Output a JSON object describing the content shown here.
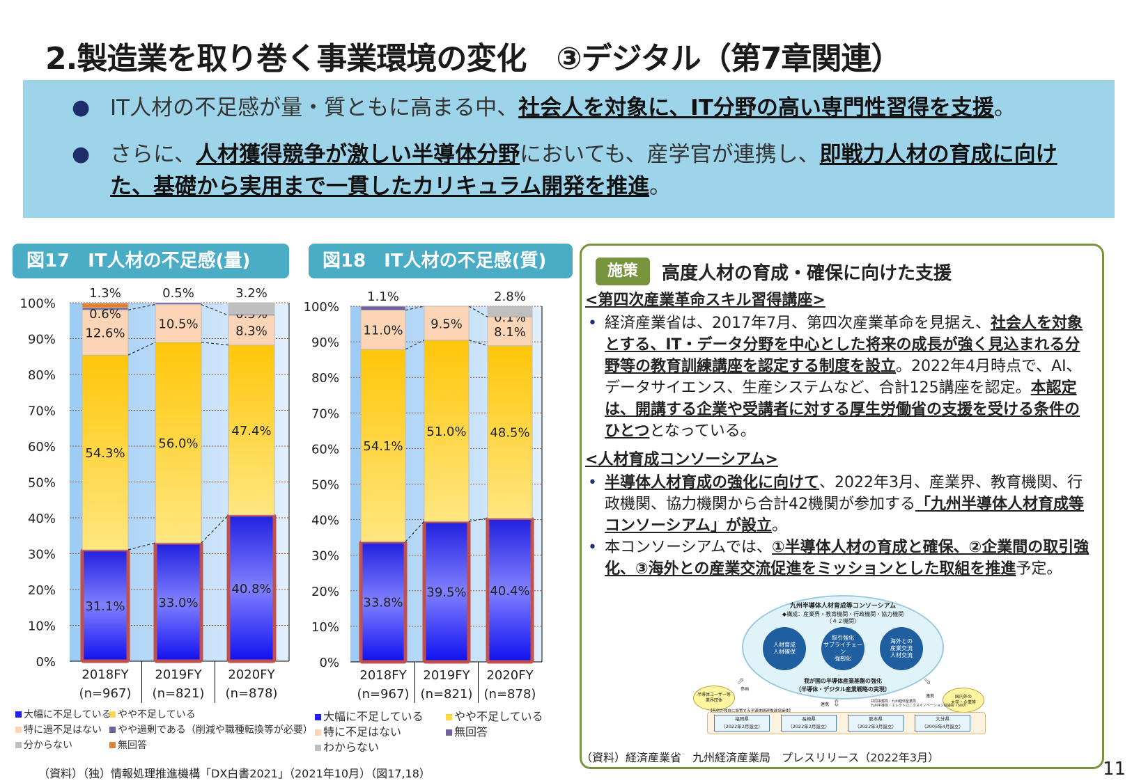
{
  "title": "2.製造業を取り巻く事業環境の変化　③デジタル（第7章関連）",
  "banner": {
    "bullet1": {
      "plain1": "IT人材の不足感が量・質ともに高まる中、",
      "bold1": "社会人を対象に、IT分野の高い専門性習得を支援",
      "plain2": "。"
    },
    "bullet2": {
      "plain1": "さらに、",
      "bold1": "人材獲得競争が激しい半導体分野",
      "plain2": "においても、産学官が連携し、",
      "bold2": "即戦力人材の育成に向けた、基礎から実用まで一貫したカリキュラム開発を推進",
      "plain3": "。"
    }
  },
  "fig17": {
    "header": "図17　IT人材の不足感(量)",
    "legend": [
      "大幅に不足している",
      "やや不足している",
      "特に過不足はない",
      "やや過剰である（削減や職種転換等が必要）",
      "分からない",
      "無回答"
    ]
  },
  "fig18": {
    "header": "図18　IT人材の不足感(質)",
    "legend": [
      "大幅に不足している",
      "やや不足している",
      "特に不足はない",
      "無回答",
      "わからない"
    ]
  },
  "chart_data": [
    {
      "type": "bar",
      "stacked": true,
      "title": "図17　IT人材の不足感(量)",
      "categories": [
        "2018FY",
        "2019FY",
        "2020FY"
      ],
      "category_n": [
        "(n=967)",
        "(n=821)",
        "(n=878)"
      ],
      "ylim": [
        0,
        100
      ],
      "yticks": [
        "0%",
        "10%",
        "20%",
        "30%",
        "40%",
        "50%",
        "60%",
        "70%",
        "80%",
        "90%",
        "100%"
      ],
      "grid": true,
      "series": [
        {
          "name": "大幅に不足している",
          "color": "#2020f0",
          "values": [
            31.1,
            33.0,
            40.8
          ]
        },
        {
          "name": "やや不足している",
          "color": "#ffc60a",
          "values": [
            54.3,
            56.0,
            47.4
          ]
        },
        {
          "name": "特に過不足はない",
          "color": "#fbd5b5",
          "values": [
            12.6,
            10.5,
            8.3
          ]
        },
        {
          "name": "やや過剰である（削減や職種転換等が必要）",
          "color": "#7060a0",
          "values": [
            0.6,
            0.5,
            0.3
          ]
        },
        {
          "name": "分からない",
          "color": "#bfbfbf",
          "values": [
            0,
            0,
            3.2
          ]
        },
        {
          "name": "無回答",
          "color": "#e08030",
          "values": [
            1.3,
            0,
            0
          ]
        }
      ]
    },
    {
      "type": "bar",
      "stacked": true,
      "title": "図18　IT人材の不足感(質)",
      "categories": [
        "2018FY",
        "2019FY",
        "2020FY"
      ],
      "category_n": [
        "(n=967)",
        "(n=821)",
        "(n=878)"
      ],
      "ylim": [
        0,
        100
      ],
      "yticks": [
        "0%",
        "10%",
        "20%",
        "30%",
        "40%",
        "50%",
        "60%",
        "70%",
        "80%",
        "90%",
        "100%"
      ],
      "grid": true,
      "series": [
        {
          "name": "大幅に不足している",
          "color": "#2020f0",
          "values": [
            33.8,
            39.5,
            40.4
          ]
        },
        {
          "name": "やや不足している",
          "color": "#ffc60a",
          "values": [
            54.1,
            51.0,
            48.5
          ]
        },
        {
          "name": "特に不足はない",
          "color": "#fbd5b5",
          "values": [
            11.0,
            9.5,
            8.1
          ]
        },
        {
          "name": "無回答",
          "color": "#7060a0",
          "values": [
            1.1,
            0,
            0.1
          ]
        },
        {
          "name": "わからない",
          "color": "#bfbfbf",
          "values": [
            0,
            0,
            2.8
          ]
        }
      ]
    }
  ],
  "source_left": "（資料）（独）情報処理推進機構「DX白書2021」（2021年10月）（図17,18）",
  "panel": {
    "badge": "施策",
    "title": "高度人材の育成・確保に向けた支援",
    "sec1": {
      "heading": "<第四次産業革命スキル習得講座>",
      "p1": "経済産業省は、2017年7月、第四次産業革命を見据え、",
      "b1": "社会人を対象とする、IT・データ分野を中心とした将来の成長が強く見込まれる分野等の教育訓練講座を認定する制度を設立",
      "p2": "。2022年4月時点で、AI、データサイエンス、生産システムなど、合計125講座を認定。",
      "b2": "本認定は、開講する企業や受講者に対する厚生労働省の支援を受ける条件のひとつ",
      "p3": "となっている。"
    },
    "sec2": {
      "heading": "<人材育成コンソーシアム>",
      "i1": {
        "b1": "半導体人材育成の強化に向けて",
        "p1": "、2022年3月、産業界、教育機関、行政機関、協力機関から合計42機関が参加する",
        "b2": "「九州半導体人材育成等コンソーシアム」が設立",
        "p2": "。"
      },
      "i2": {
        "p1": "本コンソーシアムでは、",
        "b1": "①半導体人材の育成と確保、②企業間の取引強化、③海外との産業交流促進をミッションとした取組を推進",
        "p2": "予定。"
      }
    },
    "diagram": {
      "title": "九州半導体人材育成等コンソーシアム",
      "members": "◆構成：産業界・教育機関・行政機関・協力機関",
      "count": "（４２機関）",
      "circles": [
        "人材育成\n人材確保",
        "取引強化\nサプライチェーン\n強靭化",
        "海外との\n産業交流\n人材交流"
      ],
      "goal1": "我が国の半導体産業基盤の強化",
      "goal2": "〔半導体・デジタル産業戦略の実現〕",
      "left_party": "半導体ユーザー等\n業界団体",
      "left_rel": "参画",
      "right_party": "国内外の\n大学・企業等",
      "right_rel": "連携",
      "bottom_rel": "連携",
      "secretariat": "共同事務局：九州経済産業局\n九州半導体・エレクトロニクスイノベーション協議会（SIIQ）",
      "pref_caption": "【各県が独自に設置する半導体関連推進協議体】",
      "prefs": [
        {
          "name": "福岡県",
          "date": "（2022年2月設立）"
        },
        {
          "name": "長崎県",
          "date": "（2022年2月設立）"
        },
        {
          "name": "熊本県",
          "date": "（2022年3月設立）"
        },
        {
          "name": "大分県",
          "date": "（2005年4月設立）"
        }
      ]
    },
    "source": "（資料）経済産業省　九州経済産業局　プレスリリース（2022年3月）"
  },
  "page_number": "11"
}
